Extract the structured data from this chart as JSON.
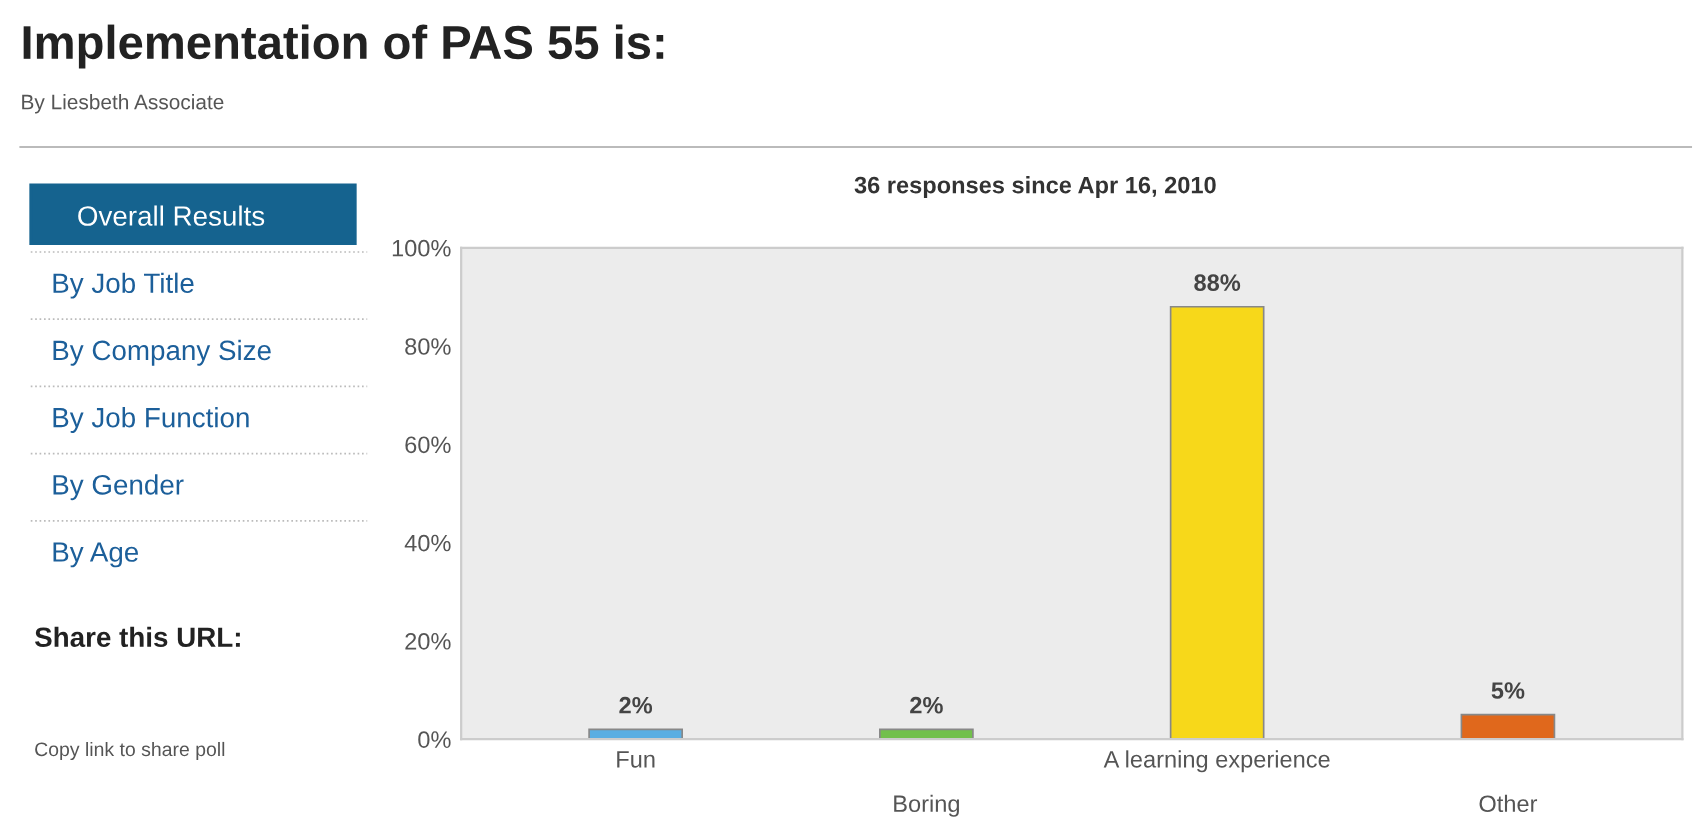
{
  "chart_data": {
    "type": "bar",
    "title": "Implementation of PAS 55 is:",
    "subtitle": "By Liesbeth Associate",
    "categories": [
      "Fun",
      "Boring",
      "A learning experience",
      "Other"
    ],
    "values": [
      2,
      2,
      88,
      5
    ],
    "colors": [
      "#5aaee2",
      "#72c04c",
      "#f7d81a",
      "#e0681c"
    ],
    "value_labels": [
      "2%",
      "2%",
      "88%",
      "5%"
    ],
    "ylim": [
      0,
      100
    ],
    "yticks": [
      {
        "value": 0,
        "label": "0%"
      },
      {
        "value": 20,
        "label": "20%"
      },
      {
        "value": 40,
        "label": "40%"
      },
      {
        "value": 60,
        "label": "60%"
      },
      {
        "value": 80,
        "label": "80%"
      },
      {
        "value": 100,
        "label": "100%"
      }
    ],
    "grid": false,
    "annotations": [
      "36 responses since Apr 16, 2010",
      "Overall Results",
      "By Job Title",
      "By Company Size",
      "By Job Function",
      "By Gender",
      "By Age",
      "Share this URL:",
      "Copy link to share poll"
    ]
  }
}
